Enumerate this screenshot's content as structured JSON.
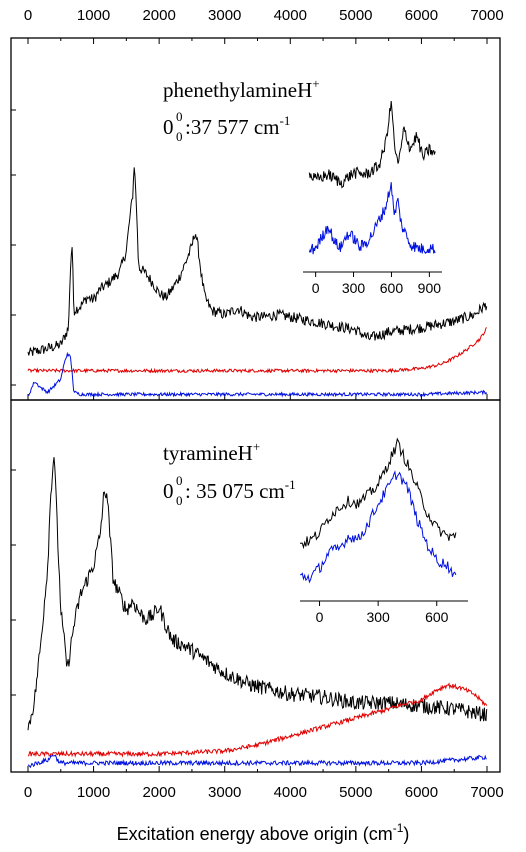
{
  "chart_data": {
    "type": "line",
    "xlabel": "Excitation energy above origin (cm",
    "xlabel_unit_sup": "-1",
    "xlabel_close": ")",
    "xlim": [
      0,
      7000
    ],
    "top_axis_ticks": [
      "0",
      "1000",
      "2000",
      "3000",
      "4000",
      "5000",
      "6000",
      "7000"
    ],
    "bottom_axis_ticks": [
      "0",
      "1000",
      "2000",
      "3000",
      "4000",
      "5000",
      "6000",
      "7000"
    ],
    "series_colors": {
      "black": "#000000",
      "red": "#e00000",
      "blue": "#0010e0"
    },
    "panels": [
      {
        "molecule": "phenethylamineH",
        "molecule_sup": "+",
        "origin_label": "0",
        "origin_sup": "0",
        "origin_sub": "0",
        "origin_value": ":37 577 cm",
        "origin_unit_sup": "-1",
        "series": [
          {
            "color": "black",
            "x": [
              0,
              500,
              620,
              640,
              670,
              700,
              800,
              900,
              1000,
              1100,
              1200,
              1300,
              1400,
              1500,
              1550,
              1600,
              1620,
              1650,
              1680,
              1700,
              1800,
              1900,
              2000,
              2100,
              2200,
              2300,
              2400,
              2500,
              2550,
              2600,
              2650,
              2700,
              2800,
              3000,
              3200,
              3400,
              3600,
              3800,
              4000,
              4500,
              5000,
              5200,
              5500,
              6000,
              6500,
              6800,
              7000
            ],
            "y": [
              0.1,
              0.14,
              0.22,
              0.45,
              0.62,
              0.3,
              0.32,
              0.36,
              0.35,
              0.4,
              0.42,
              0.45,
              0.48,
              0.58,
              0.72,
              0.85,
              0.98,
              0.82,
              0.55,
              0.5,
              0.47,
              0.43,
              0.38,
              0.36,
              0.4,
              0.45,
              0.52,
              0.6,
              0.67,
              0.58,
              0.45,
              0.36,
              0.3,
              0.28,
              0.31,
              0.27,
              0.27,
              0.28,
              0.27,
              0.24,
              0.21,
              0.17,
              0.2,
              0.22,
              0.25,
              0.28,
              0.33
            ]
          },
          {
            "color": "red",
            "x": [
              0,
              1000,
              2000,
              3000,
              4000,
              5000,
              5500,
              6000,
              6300,
              6500,
              6700,
              6900,
              7000
            ],
            "y": [
              0.02,
              0.02,
              0.02,
              0.02,
              0.02,
              0.02,
              0.02,
              0.03,
              0.05,
              0.08,
              0.12,
              0.17,
              0.22
            ]
          },
          {
            "color": "blue",
            "x": [
              0,
              100,
              200,
              300,
              400,
              500,
              550,
              600,
              650,
              700,
              800,
              1000,
              2000,
              3000,
              4000,
              5000,
              6000,
              7000
            ],
            "y": [
              -0.1,
              -0.03,
              -0.06,
              -0.08,
              -0.05,
              -0.02,
              0.05,
              0.1,
              0.08,
              -0.08,
              -0.09,
              -0.09,
              -0.09,
              -0.09,
              -0.09,
              -0.09,
              -0.09,
              -0.08
            ]
          }
        ],
        "inset": {
          "ticks": [
            "0",
            "300",
            "600",
            "900"
          ],
          "xlim": [
            -100,
            1000
          ],
          "series": [
            {
              "color": "black",
              "x": [
                -50,
                0,
                100,
                200,
                300,
                400,
                500,
                550,
                600,
                620,
                650,
                680,
                700,
                750,
                800,
                850,
                900,
                950
              ],
              "y": [
                0.55,
                0.52,
                0.55,
                0.5,
                0.56,
                0.55,
                0.6,
                0.72,
                0.98,
                0.75,
                0.6,
                0.72,
                0.82,
                0.7,
                0.78,
                0.65,
                0.7,
                0.66
              ]
            },
            {
              "color": "blue",
              "x": [
                -50,
                0,
                50,
                100,
                150,
                200,
                250,
                300,
                350,
                400,
                450,
                500,
                550,
                600,
                620,
                650,
                680,
                700,
                750,
                800,
                850,
                900,
                950
              ],
              "y": [
                0.1,
                0.12,
                0.18,
                0.25,
                0.15,
                0.12,
                0.2,
                0.18,
                0.12,
                0.15,
                0.2,
                0.28,
                0.35,
                0.5,
                0.3,
                0.4,
                0.25,
                0.22,
                0.14,
                0.12,
                0.11,
                0.12,
                0.11
              ]
            }
          ]
        }
      },
      {
        "molecule": "tyramineH",
        "molecule_sup": "+",
        "origin_label": "0",
        "origin_sup": "0",
        "origin_sub": "0",
        "origin_value": ": 35 075 cm",
        "origin_unit_sup": "-1",
        "series": [
          {
            "color": "black",
            "x": [
              0,
              100,
              200,
              300,
              350,
              400,
              450,
              500,
              550,
              600,
              700,
              800,
              900,
              1000,
              1100,
              1150,
              1200,
              1250,
              1300,
              1400,
              1500,
              1600,
              1700,
              1800,
              1900,
              2000,
              2100,
              2200,
              2400,
              2600,
              2800,
              3000,
              3200,
              3400,
              3600,
              3800,
              4000,
              4500,
              5000,
              5500,
              6000,
              6500,
              7000
            ],
            "y": [
              0.05,
              0.15,
              0.35,
              0.6,
              0.85,
              0.98,
              0.7,
              0.45,
              0.35,
              0.25,
              0.4,
              0.5,
              0.55,
              0.6,
              0.7,
              0.82,
              0.85,
              0.7,
              0.55,
              0.5,
              0.45,
              0.48,
              0.44,
              0.42,
              0.43,
              0.46,
              0.4,
              0.35,
              0.33,
              0.3,
              0.27,
              0.24,
              0.22,
              0.2,
              0.19,
              0.18,
              0.17,
              0.16,
              0.14,
              0.14,
              0.13,
              0.12,
              0.1
            ]
          },
          {
            "color": "red",
            "x": [
              0,
              1000,
              2000,
              3000,
              3500,
              4000,
              4500,
              5000,
              5500,
              5800,
              6000,
              6200,
              6400,
              6600,
              6800,
              7000
            ],
            "y": [
              -0.03,
              -0.03,
              -0.03,
              -0.02,
              0.0,
              0.03,
              0.06,
              0.09,
              0.12,
              0.14,
              0.15,
              0.18,
              0.2,
              0.19,
              0.17,
              0.13
            ]
          },
          {
            "color": "blue",
            "x": [
              0,
              300,
              400,
              450,
              500,
              700,
              1000,
              2000,
              3000,
              4000,
              5000,
              6000,
              6500,
              7000
            ],
            "y": [
              -0.07,
              -0.05,
              -0.03,
              -0.05,
              -0.06,
              -0.06,
              -0.06,
              -0.06,
              -0.06,
              -0.06,
              -0.06,
              -0.06,
              -0.05,
              -0.04
            ]
          }
        ],
        "inset": {
          "ticks": [
            "0",
            "300",
            "600"
          ],
          "xlim": [
            -100,
            760
          ],
          "series": [
            {
              "color": "black",
              "x": [
                -100,
                -50,
                0,
                50,
                100,
                150,
                200,
                250,
                300,
                350,
                400,
                450,
                500,
                550,
                600,
                650,
                700
              ],
              "y": [
                0.35,
                0.37,
                0.42,
                0.52,
                0.58,
                0.62,
                0.6,
                0.66,
                0.72,
                0.85,
                0.98,
                0.85,
                0.7,
                0.55,
                0.45,
                0.4,
                0.4
              ]
            },
            {
              "color": "blue",
              "x": [
                -100,
                -50,
                0,
                50,
                100,
                150,
                200,
                250,
                300,
                350,
                400,
                450,
                500,
                550,
                600,
                650,
                700
              ],
              "y": [
                0.15,
                0.14,
                0.2,
                0.3,
                0.32,
                0.4,
                0.38,
                0.48,
                0.6,
                0.7,
                0.8,
                0.7,
                0.5,
                0.35,
                0.25,
                0.22,
                0.15
              ]
            }
          ]
        }
      }
    ]
  }
}
